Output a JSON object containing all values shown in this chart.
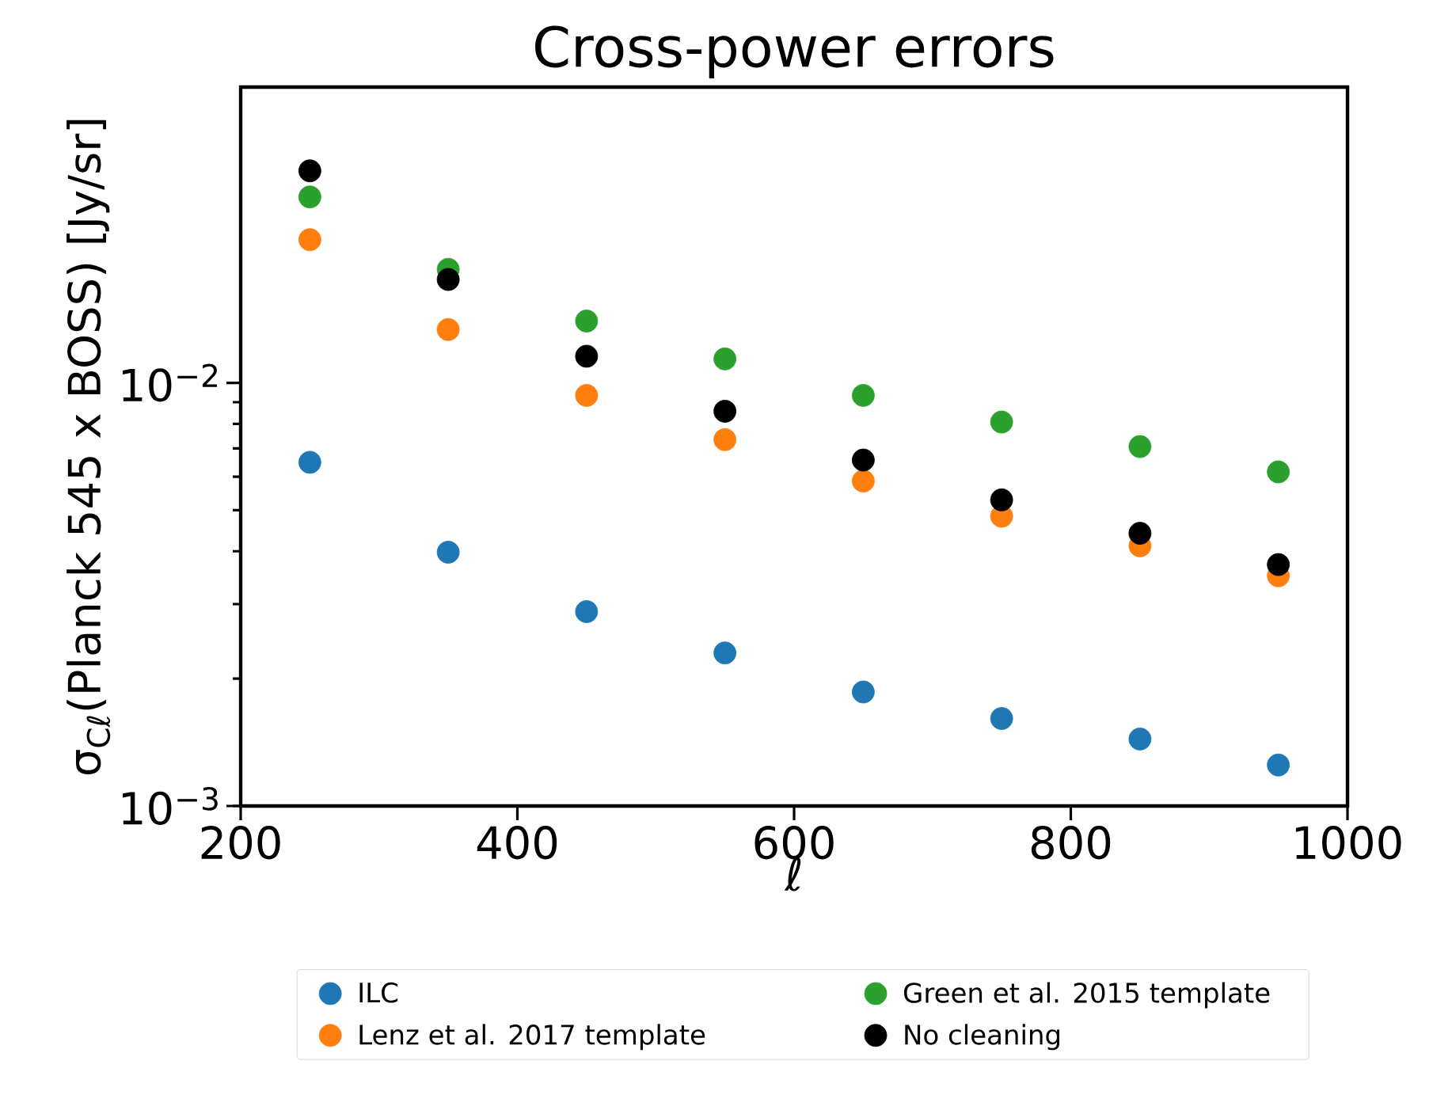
{
  "chart_data": {
    "type": "scatter",
    "title": "Cross-power errors",
    "xlabel": "ℓ",
    "ylabel": "σ$_{Cℓ}$(Planck 545 x BOSS) [Jy/sr]",
    "x": [
      250,
      350,
      450,
      550,
      650,
      750,
      850,
      950
    ],
    "series": [
      {
        "name": "ILC",
        "color": "#1f77b4",
        "values": [
          0.00649,
          0.00398,
          0.00288,
          0.0023,
          0.00186,
          0.00161,
          0.00144,
          0.00125
        ]
      },
      {
        "name": "Lenz et al. 2017 template",
        "color": "#ff7f0e",
        "values": [
          0.0218,
          0.01337,
          0.00934,
          0.00734,
          0.00586,
          0.00484,
          0.00412,
          0.0035
        ]
      },
      {
        "name": "Green et al. 2015 template",
        "color": "#2ca02c",
        "values": [
          0.0275,
          0.01855,
          0.014,
          0.01139,
          0.00934,
          0.00808,
          0.00707,
          0.00616
        ]
      },
      {
        "name": "No cleaning",
        "color": "#000000",
        "values": [
          0.0317,
          0.01755,
          0.01156,
          0.00857,
          0.00657,
          0.00529,
          0.00441,
          0.00372
        ]
      }
    ],
    "xlim": [
      200,
      1000
    ],
    "xticks": [
      200,
      400,
      600,
      800,
      1000
    ],
    "ylim": [
      0.001,
      0.05
    ],
    "yticks": [
      {
        "value": 0.001,
        "label": "10$^{−3}$"
      },
      {
        "value": 0.01,
        "label": "10$^{−2}$"
      }
    ],
    "log": "y",
    "legend": "bottom"
  }
}
